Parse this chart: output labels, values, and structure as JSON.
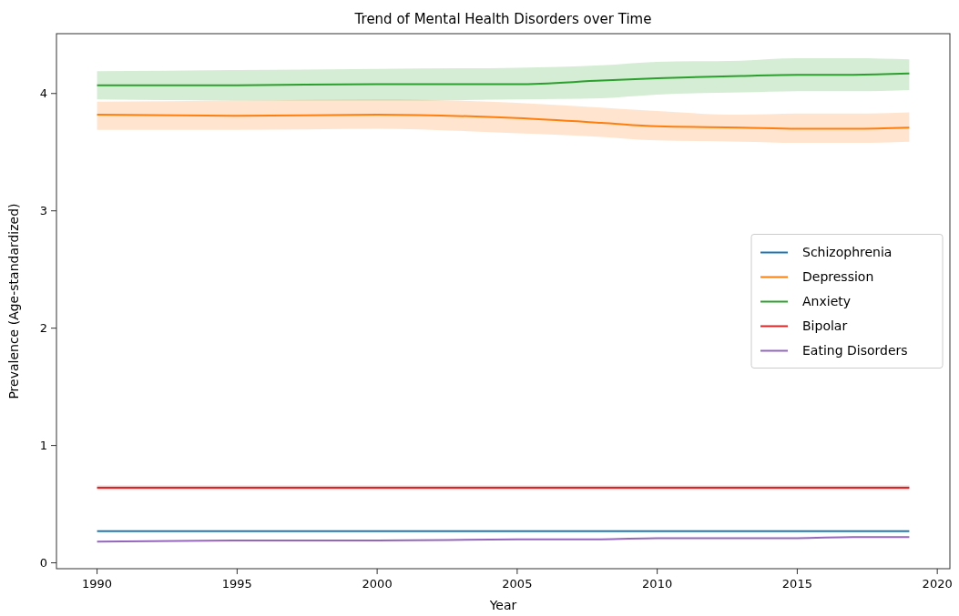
{
  "chart_data": {
    "type": "line",
    "title": "Trend of Mental Health Disorders over Time",
    "xlabel": "Year",
    "ylabel": "Prevalence (Age-standardized)",
    "x": [
      1990,
      1995,
      2000,
      2005,
      2008,
      2010,
      2013,
      2015,
      2017,
      2019
    ],
    "xlim": [
      1988.55,
      2020.45
    ],
    "xticks": [
      1990,
      1995,
      2000,
      2005,
      2010,
      2015,
      2020
    ],
    "ylim": [
      -0.05,
      4.51
    ],
    "yticks": [
      0,
      1,
      2,
      3,
      4
    ],
    "grid": false,
    "legend": "right",
    "line_style": "solid",
    "marker": "none",
    "series": [
      {
        "name": "Schizophrenia",
        "color": "#1f77b4",
        "values": [
          0.27,
          0.27,
          0.27,
          0.27,
          0.27,
          0.27,
          0.27,
          0.27,
          0.27,
          0.27
        ]
      },
      {
        "name": "Depression",
        "color": "#ff7f0e",
        "values": [
          3.82,
          3.81,
          3.82,
          3.79,
          3.75,
          3.72,
          3.71,
          3.7,
          3.7,
          3.71
        ],
        "lower": [
          3.69,
          3.69,
          3.7,
          3.66,
          3.63,
          3.6,
          3.59,
          3.58,
          3.58,
          3.59
        ],
        "upper": [
          3.93,
          3.94,
          3.95,
          3.92,
          3.88,
          3.85,
          3.82,
          3.83,
          3.83,
          3.84
        ]
      },
      {
        "name": "Anxiety",
        "color": "#2ca02c",
        "values": [
          4.07,
          4.07,
          4.08,
          4.08,
          4.11,
          4.13,
          4.15,
          4.16,
          4.16,
          4.17
        ],
        "lower": [
          3.95,
          3.94,
          3.94,
          3.95,
          3.96,
          3.99,
          4.01,
          4.02,
          4.02,
          4.03
        ],
        "upper": [
          4.19,
          4.2,
          4.21,
          4.22,
          4.24,
          4.27,
          4.28,
          4.3,
          4.3,
          4.29
        ]
      },
      {
        "name": "Bipolar",
        "color": "#d62728",
        "values": [
          0.64,
          0.64,
          0.64,
          0.64,
          0.64,
          0.64,
          0.64,
          0.64,
          0.64,
          0.64
        ],
        "lower": [
          0.62,
          0.62,
          0.62,
          0.62,
          0.62,
          0.62,
          0.62,
          0.62,
          0.62,
          0.62
        ],
        "upper": [
          0.66,
          0.66,
          0.66,
          0.66,
          0.66,
          0.66,
          0.66,
          0.66,
          0.66,
          0.66
        ]
      },
      {
        "name": "Eating Disorders",
        "color": "#9467bd",
        "values": [
          0.18,
          0.19,
          0.19,
          0.2,
          0.2,
          0.21,
          0.21,
          0.21,
          0.22,
          0.22
        ]
      }
    ]
  }
}
